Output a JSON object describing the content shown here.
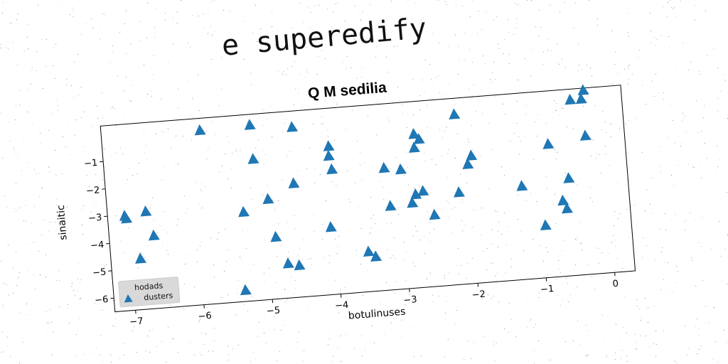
{
  "page": {
    "heading": "e superedify"
  },
  "chart_data": {
    "type": "scatter",
    "title": "Q M sedilia",
    "xlabel": "botulinuses",
    "ylabel": "sinaitic",
    "xlim": [
      -7.3,
      0.3
    ],
    "ylim": [
      -6.5,
      0.3
    ],
    "xticks": [
      -7,
      -6,
      -5,
      -4,
      -3,
      -2,
      -1,
      0
    ],
    "yticks": [
      -1,
      -2,
      -3,
      -4,
      -5,
      -6
    ],
    "legend": {
      "title": "hodads",
      "placement": "lower-left"
    },
    "series": [
      {
        "name": "dusters",
        "color": "#1f77b4",
        "marker": "triangle-up",
        "x": [
          -7.05,
          -7.03,
          -6.74,
          -6.65,
          -6.87,
          -5.86,
          -5.13,
          -4.52,
          -5.12,
          -4.56,
          -4.01,
          -4.02,
          -3.99,
          -4.95,
          -5.32,
          -4.88,
          -4.73,
          -4.57,
          -4.07,
          -3.55,
          -3.45,
          -3.23,
          -3.18,
          -2.99,
          -2.77,
          -2.69,
          -2.69,
          -2.55,
          -2.8,
          -2.86,
          -2.76,
          -2.17,
          -2.15,
          -2.01,
          -1.95,
          -1.25,
          -0.95,
          -0.82,
          -0.56,
          -0.67,
          -0.62,
          -0.45,
          -0.29,
          -0.27,
          -0.25,
          -5.38
        ],
        "y": [
          -3.05,
          -3.15,
          -2.95,
          -3.85,
          -4.65,
          -0.15,
          -0.1,
          -0.3,
          -1.35,
          -2.35,
          -1.1,
          -1.45,
          -1.95,
          -2.85,
          -3.25,
          -4.25,
          -5.25,
          -5.35,
          -4.05,
          -5.05,
          -5.25,
          -2.05,
          -3.45,
          -2.15,
          -1.4,
          -1.1,
          -3.0,
          -3.9,
          -3.1,
          -3.4,
          -0.9,
          -3.15,
          -0.3,
          -2.15,
          -1.85,
          -3.1,
          -4.6,
          -1.65,
          -2.95,
          -3.75,
          -4.05,
          -0.1,
          -0.1,
          -1.45,
          0.21,
          -6.1
        ]
      }
    ]
  }
}
